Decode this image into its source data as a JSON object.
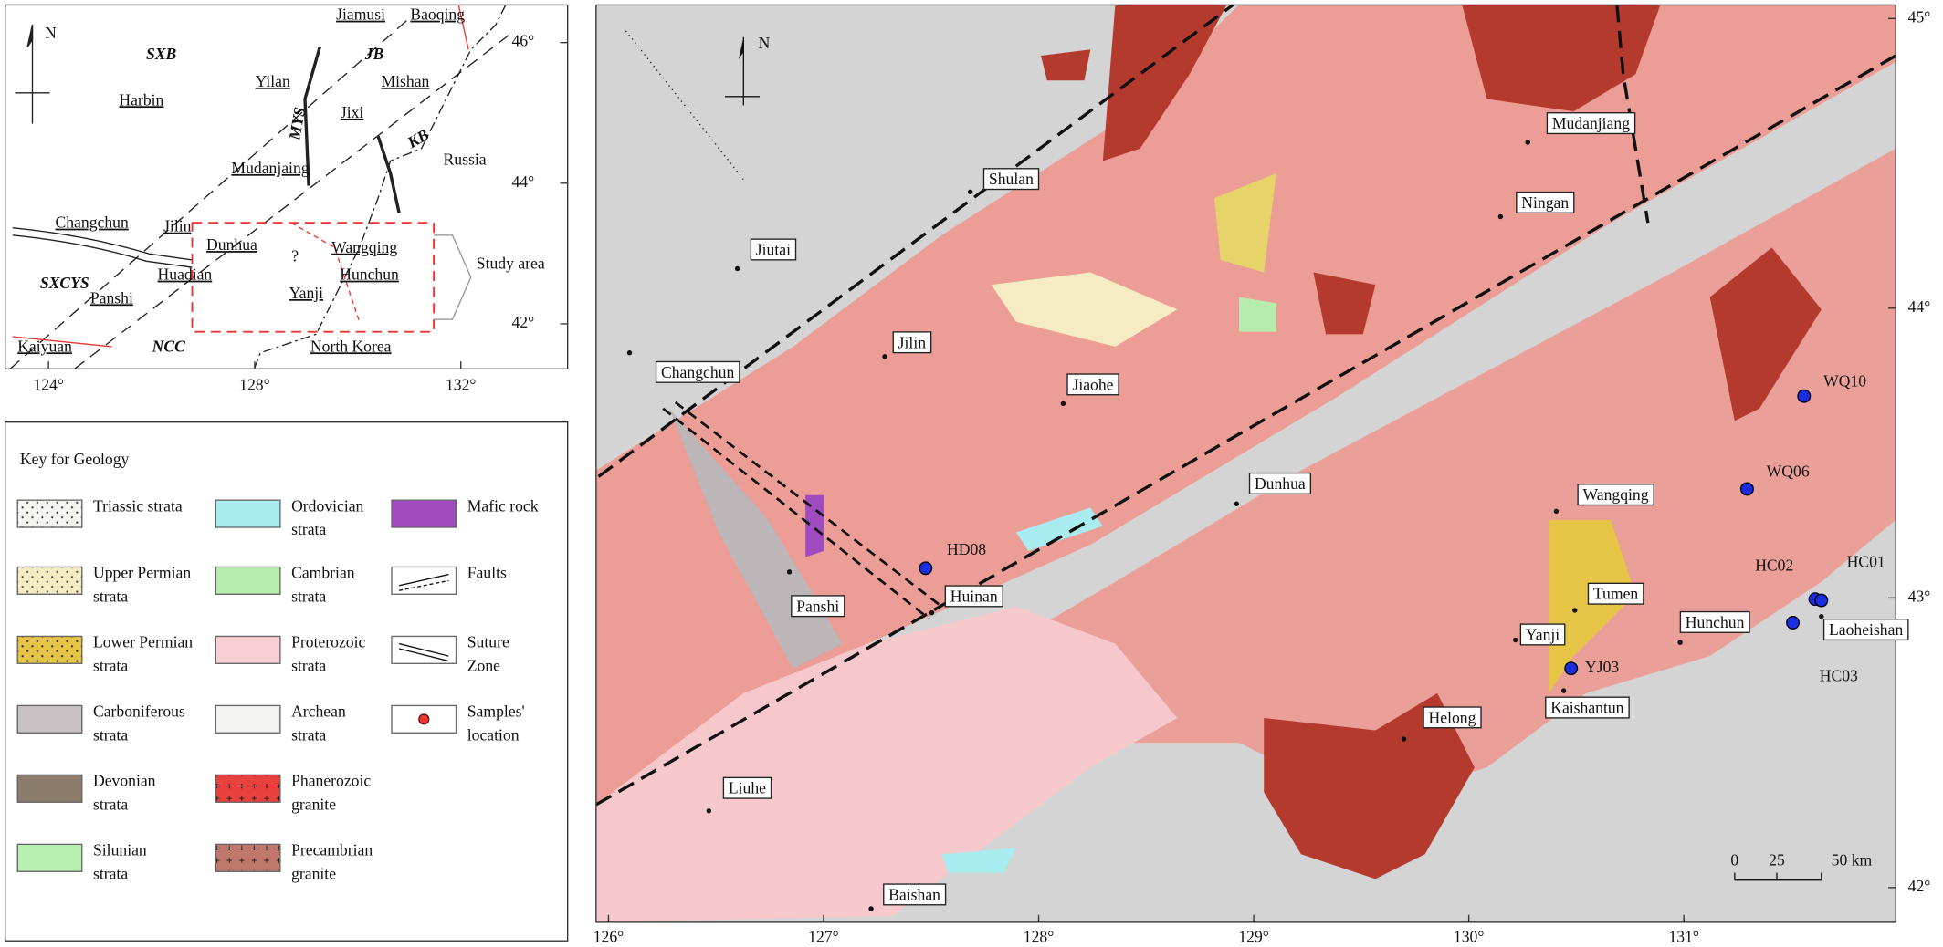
{
  "inset_map": {
    "north": "N",
    "regions": [
      "SXB",
      "JB",
      "MYS",
      "KB",
      "SXCYS",
      "NCC"
    ],
    "places": [
      "Jiamusi",
      "Baoqing",
      "Yilan",
      "Harbin",
      "Mishan",
      "Jixi",
      "Mudanjaing",
      "Russia",
      "Changchun",
      "Jilin",
      "Dunhua",
      "?",
      "Wangqing",
      "Huadian",
      "Hunchun",
      "Yanji",
      "Panshi",
      "Kaiyuan",
      "North Korea"
    ],
    "study_area": "Study area",
    "xticks": [
      {
        "value": 124,
        "label": "124°"
      },
      {
        "value": 128,
        "label": "128°"
      },
      {
        "value": 132,
        "label": "132°"
      }
    ],
    "yticks": [
      {
        "value": 46,
        "label": "46°"
      },
      {
        "value": 44,
        "label": "44°"
      },
      {
        "value": 42,
        "label": "42°"
      }
    ]
  },
  "legend": {
    "title": "Key for Geology",
    "items": [
      [
        "Triassic strata"
      ],
      [
        "Upper Permian",
        "strata"
      ],
      [
        "Lower Permian",
        "strata"
      ],
      [
        "Carboniferous",
        "strata"
      ],
      [
        "Devonian",
        "strata"
      ],
      [
        "Silunian",
        "strata"
      ],
      [
        "Ordovician",
        "strata"
      ],
      [
        "Cambrian",
        "strata"
      ],
      [
        "Proterozoic",
        "strata"
      ],
      [
        "Archean",
        "strata"
      ],
      [
        "Phanerozoic",
        "granite"
      ],
      [
        "Precambrian",
        "granite"
      ],
      [
        "Mafic rock"
      ],
      [
        "Faults"
      ],
      [
        "Suture",
        "Zone"
      ],
      [
        "Samples'",
        "location"
      ]
    ]
  },
  "main_map": {
    "north": "N",
    "places": [
      "Shulan",
      "Jiutai",
      "Jilin",
      "Changchun",
      "Jiaohe",
      "Mudanjiang",
      "Ningan",
      "Dunhua",
      "Wangqing",
      "Huinan",
      "Panshi",
      "Tumen",
      "Hunchun",
      "Yanji",
      "Helong",
      "Liuhe",
      "Baishan",
      "Laoheishan",
      "Kaishantun"
    ],
    "samples": [
      "HD08",
      "WQ10",
      "WQ06",
      "HC02",
      "HC01",
      "HC03",
      "YJ03"
    ],
    "scale": [
      "0",
      "25",
      "50 km"
    ],
    "xticks": [
      {
        "value": 126,
        "label": "126°"
      },
      {
        "value": 127,
        "label": "127°"
      },
      {
        "value": 128,
        "label": "128°"
      },
      {
        "value": 129,
        "label": "129°"
      },
      {
        "value": 130,
        "label": "130°"
      },
      {
        "value": 131,
        "label": "131°"
      }
    ],
    "yticks": [
      {
        "value": 45,
        "label": "45°"
      },
      {
        "value": 44,
        "label": "44°"
      },
      {
        "value": 43,
        "label": "43°"
      },
      {
        "value": 42,
        "label": "42°"
      }
    ]
  }
}
